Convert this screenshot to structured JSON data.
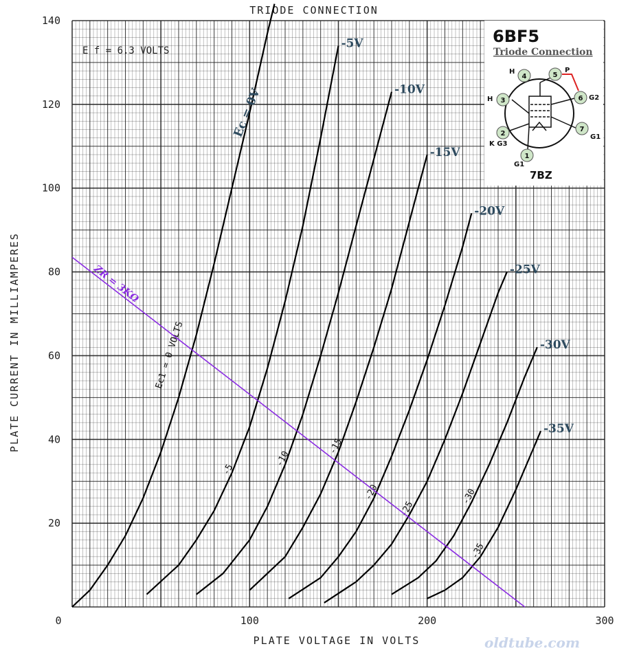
{
  "chart_data": {
    "type": "line",
    "title": "TRIODE CONNECTION",
    "xlabel": "PLATE VOLTAGE IN VOLTS",
    "ylabel": "PLATE CURRENT IN MILLIAMPERES",
    "xlim": [
      0,
      300
    ],
    "ylim": [
      0,
      140
    ],
    "x_ticks": [
      "0",
      "100",
      "200",
      "300"
    ],
    "y_ticks": [
      "20",
      "40",
      "60",
      "80",
      "100",
      "120",
      "140"
    ],
    "grid": true,
    "heater_note": "E f = 6.3 VOLTS",
    "series": [
      {
        "name": "Ec = 0V",
        "curve_label": "Ec1 = 0 VOLTS",
        "points": [
          [
            0,
            0
          ],
          [
            10,
            4
          ],
          [
            20,
            10
          ],
          [
            30,
            17
          ],
          [
            40,
            26
          ],
          [
            50,
            37
          ],
          [
            60,
            50
          ],
          [
            70,
            65
          ],
          [
            80,
            82
          ],
          [
            90,
            100
          ],
          [
            100,
            118
          ],
          [
            110,
            137
          ],
          [
            114,
            144
          ]
        ]
      },
      {
        "name": "-5V",
        "curve_label": "-5",
        "points": [
          [
            42,
            3
          ],
          [
            60,
            10
          ],
          [
            70,
            16
          ],
          [
            80,
            23
          ],
          [
            90,
            32
          ],
          [
            100,
            43
          ],
          [
            110,
            57
          ],
          [
            120,
            73
          ],
          [
            130,
            91
          ],
          [
            140,
            112
          ],
          [
            150,
            134
          ]
        ]
      },
      {
        "name": "-10V",
        "curve_label": "-10",
        "points": [
          [
            70,
            3
          ],
          [
            85,
            8
          ],
          [
            100,
            16
          ],
          [
            110,
            24
          ],
          [
            120,
            34
          ],
          [
            130,
            46
          ],
          [
            140,
            60
          ],
          [
            150,
            75
          ],
          [
            160,
            91
          ],
          [
            170,
            107
          ],
          [
            180,
            123
          ]
        ]
      },
      {
        "name": "-15V",
        "curve_label": "-15",
        "points": [
          [
            100,
            4
          ],
          [
            120,
            12
          ],
          [
            130,
            19
          ],
          [
            140,
            27
          ],
          [
            150,
            37
          ],
          [
            160,
            49
          ],
          [
            170,
            62
          ],
          [
            180,
            76
          ],
          [
            190,
            92
          ],
          [
            200,
            108
          ]
        ]
      },
      {
        "name": "-20V",
        "curve_label": "-20",
        "points": [
          [
            122,
            2
          ],
          [
            140,
            7
          ],
          [
            150,
            12
          ],
          [
            160,
            18
          ],
          [
            170,
            26
          ],
          [
            180,
            36
          ],
          [
            190,
            47
          ],
          [
            200,
            59
          ],
          [
            210,
            72
          ],
          [
            220,
            86
          ],
          [
            225,
            94
          ]
        ]
      },
      {
        "name": "-25V",
        "curve_label": "-25",
        "points": [
          [
            142,
            1
          ],
          [
            160,
            6
          ],
          [
            170,
            10
          ],
          [
            180,
            15
          ],
          [
            190,
            22
          ],
          [
            200,
            30
          ],
          [
            210,
            40
          ],
          [
            220,
            51
          ],
          [
            230,
            63
          ],
          [
            240,
            75
          ],
          [
            245,
            80
          ]
        ]
      },
      {
        "name": "-30V",
        "curve_label": "-30",
        "points": [
          [
            180,
            3
          ],
          [
            195,
            7
          ],
          [
            205,
            11
          ],
          [
            215,
            17
          ],
          [
            225,
            25
          ],
          [
            235,
            34
          ],
          [
            245,
            44
          ],
          [
            255,
            55
          ],
          [
            262,
            62
          ]
        ]
      },
      {
        "name": "-35V",
        "curve_label": "-35",
        "points": [
          [
            200,
            2
          ],
          [
            210,
            4
          ],
          [
            220,
            7
          ],
          [
            230,
            12
          ],
          [
            240,
            19
          ],
          [
            250,
            28
          ],
          [
            260,
            38
          ],
          [
            264,
            42
          ]
        ]
      }
    ],
    "load_line": {
      "label": "ZR = 3KΩ",
      "points": [
        [
          0,
          83.5
        ],
        [
          255,
          0
        ]
      ],
      "color": "#8a2be2"
    }
  },
  "inset": {
    "tube": "6BF5",
    "subtitle": "Triode Connection",
    "base": "7BZ",
    "pins": [
      {
        "num": "1",
        "tag": "G1"
      },
      {
        "num": "2",
        "tag": "K G3"
      },
      {
        "num": "3",
        "tag": "H"
      },
      {
        "num": "4",
        "tag": "H"
      },
      {
        "num": "5",
        "tag": "P"
      },
      {
        "num": "6",
        "tag": "G2"
      },
      {
        "num": "7",
        "tag": "G1"
      }
    ]
  },
  "watermark": "oldtube.com",
  "colors": {
    "grid": "#222222",
    "curve": "#000000",
    "series_label": "#2d4a5e",
    "load_line": "#8a2be2"
  }
}
